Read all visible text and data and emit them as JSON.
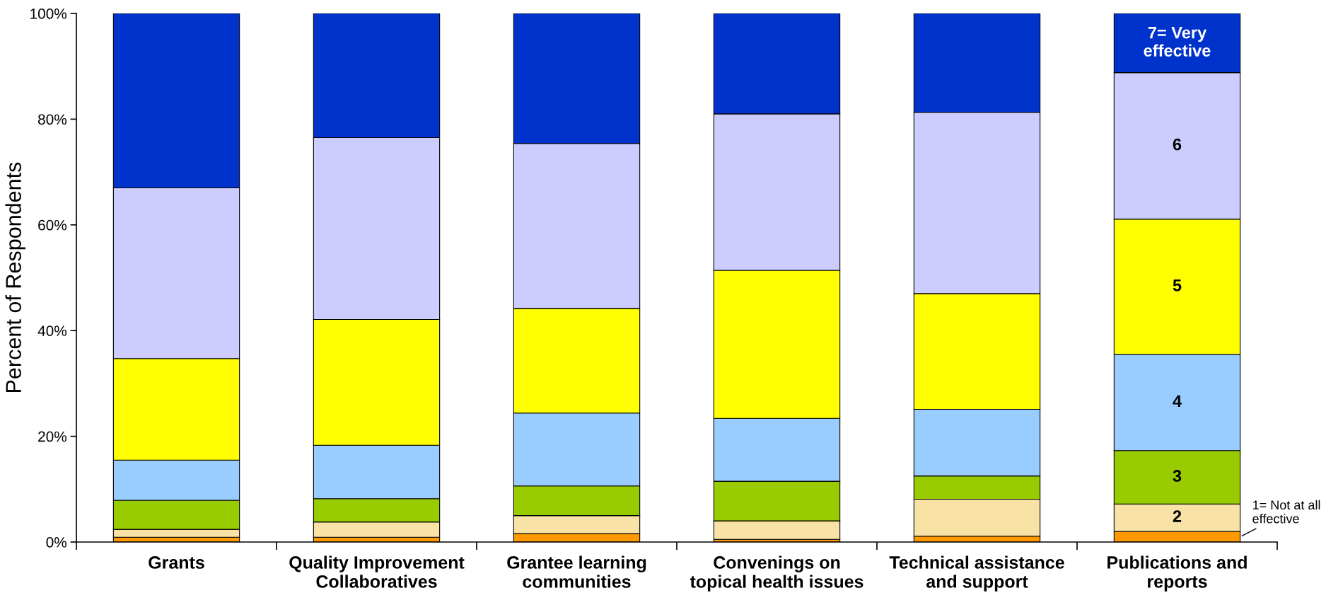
{
  "chart_data": {
    "type": "bar",
    "stacked": true,
    "ylabel": "Percent of Respondents",
    "categories": [
      "Grants",
      "Quality Improvement\nCollaboratives",
      "Grantee learning\ncommunities",
      "Convenings on\ntopical health issues",
      "Technical assistance\nand support",
      "Publications and\nreports"
    ],
    "series": [
      {
        "name": "1= Not at all effective",
        "color": "#ff9900",
        "values": [
          0.9,
          0.9,
          1.6,
          0.5,
          1.1,
          2.0
        ]
      },
      {
        "name": "2",
        "color": "#f9e2a5",
        "values": [
          1.5,
          2.9,
          3.4,
          3.5,
          7.0,
          5.2
        ]
      },
      {
        "name": "3",
        "color": "#99cc00",
        "values": [
          5.5,
          4.4,
          5.6,
          7.5,
          4.4,
          10.1
        ]
      },
      {
        "name": "4",
        "color": "#99ccff",
        "values": [
          7.6,
          10.1,
          13.8,
          11.9,
          12.6,
          18.2
        ]
      },
      {
        "name": "5",
        "color": "#ffff00",
        "values": [
          19.2,
          23.8,
          19.8,
          28.0,
          21.9,
          25.6
        ]
      },
      {
        "name": "6",
        "color": "#ccccff",
        "values": [
          32.3,
          34.4,
          31.2,
          29.6,
          34.3,
          27.7
        ]
      },
      {
        "name": "7= Very effective",
        "color": "#0033cc",
        "values": [
          33.0,
          23.5,
          24.6,
          19.0,
          18.7,
          11.2
        ]
      }
    ],
    "ylim": [
      0,
      100
    ],
    "yticks": [
      {
        "value": 0,
        "label": "0%"
      },
      {
        "value": 20,
        "label": "20%"
      },
      {
        "value": 40,
        "label": "40%"
      },
      {
        "value": 60,
        "label": "60%"
      },
      {
        "value": 80,
        "label": "80%"
      },
      {
        "value": 100,
        "label": "100%"
      }
    ],
    "grid": false,
    "legend": false
  }
}
